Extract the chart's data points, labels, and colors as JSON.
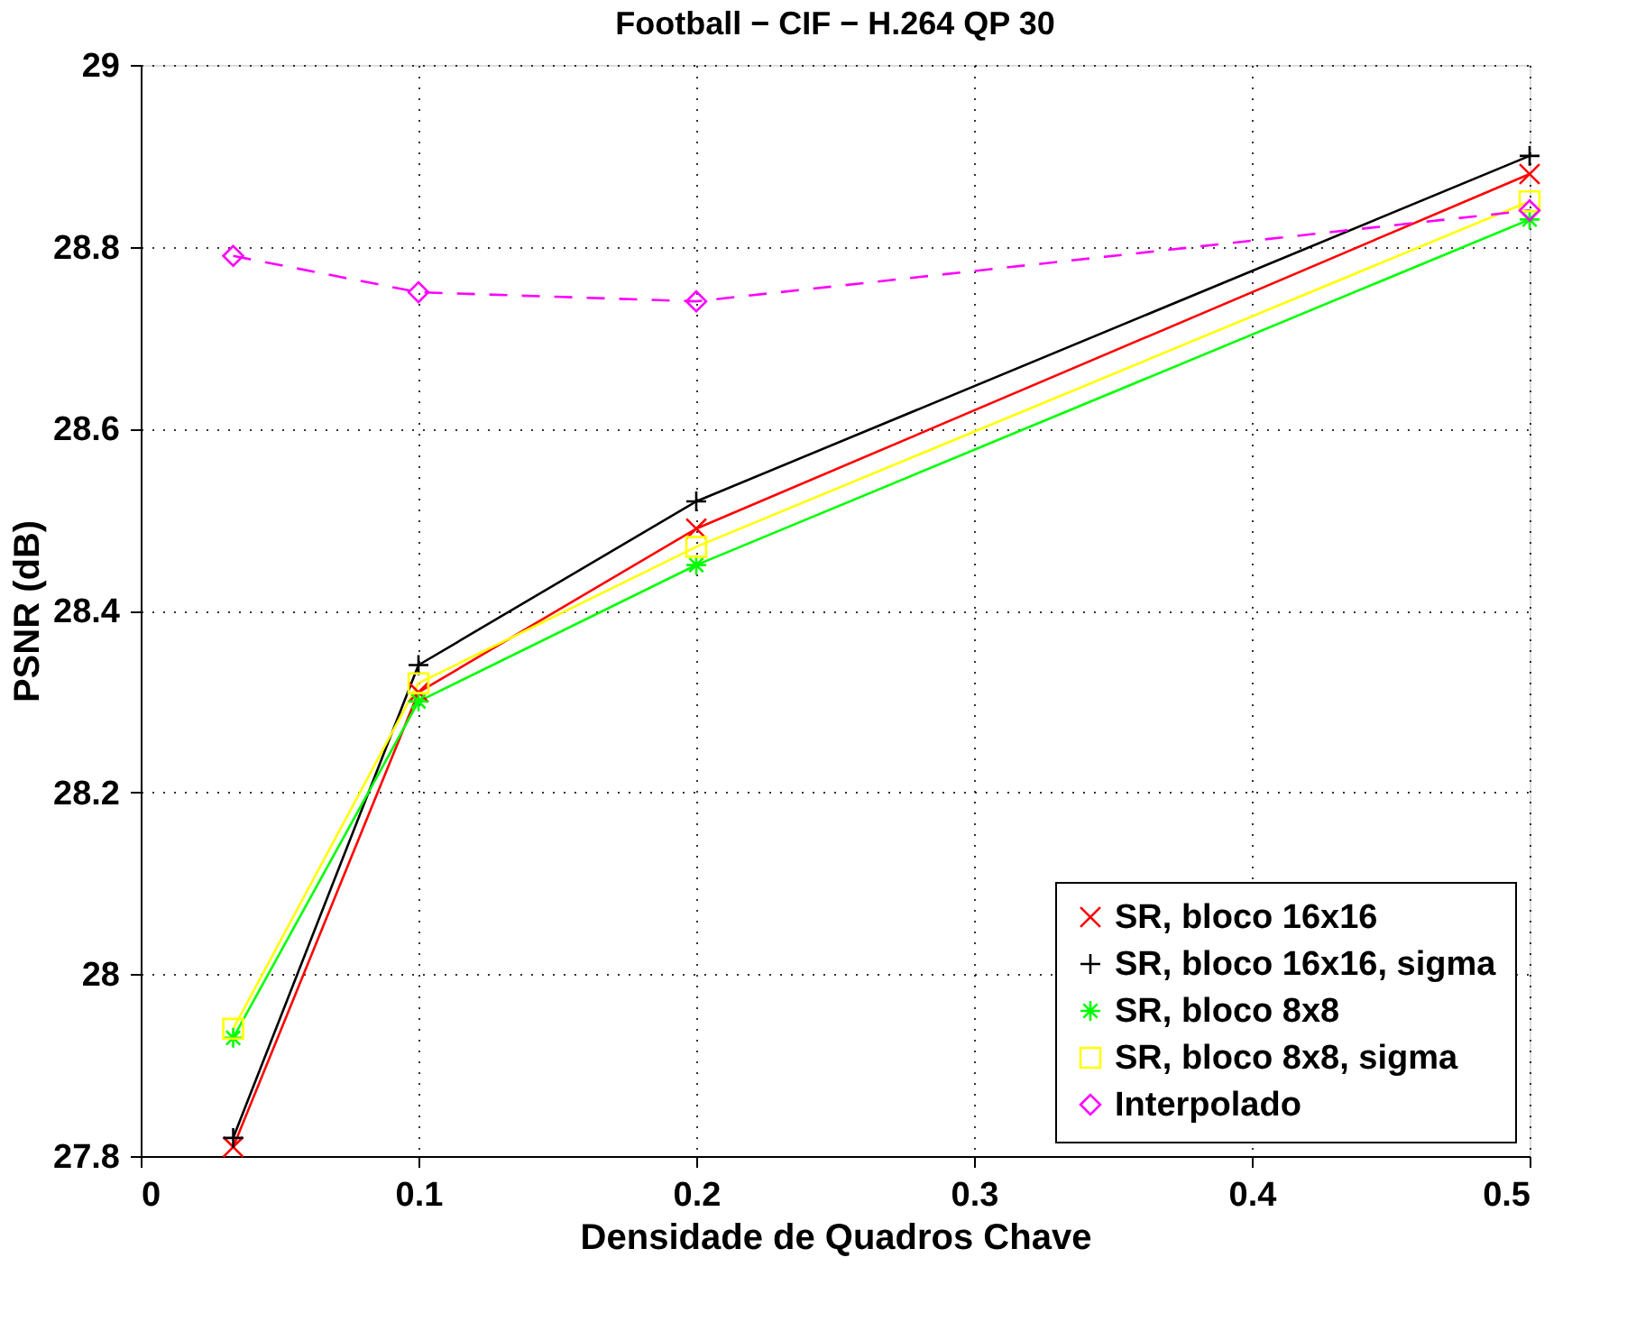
{
  "chart_data": {
    "type": "line",
    "title": "Football − CIF − H.264 QP 30",
    "xlabel": "Densidade de Quadros Chave",
    "ylabel": "PSNR (dB)",
    "x": [
      0.0333,
      0.1,
      0.2,
      0.5
    ],
    "xlim": [
      0,
      0.5
    ],
    "xticks": [
      0,
      0.1,
      0.2,
      0.3,
      0.4,
      0.5
    ],
    "ylim": [
      27.8,
      29
    ],
    "yticks": [
      27.8,
      28,
      28.2,
      28.4,
      28.6,
      28.8,
      29
    ],
    "grid": true,
    "legend": "bottom right",
    "series": [
      {
        "name": "SR, bloco 16x16",
        "color": "#ff0000",
        "marker": "x",
        "line_style": "solid",
        "values": [
          27.81,
          28.31,
          28.49,
          28.88
        ]
      },
      {
        "name": "SR, bloco 16x16, sigma",
        "color": "#000000",
        "marker": "plus",
        "line_style": "solid",
        "values": [
          27.82,
          28.34,
          28.52,
          28.9
        ]
      },
      {
        "name": "SR, bloco 8x8",
        "color": "#00ff00",
        "marker": "cross",
        "line_style": "solid",
        "values": [
          27.93,
          28.3,
          28.45,
          28.83
        ]
      },
      {
        "name": "SR, bloco 8x8, sigma",
        "color": "#ffff00",
        "marker": "square",
        "line_style": "solid",
        "values": [
          27.94,
          28.32,
          28.47,
          28.85
        ]
      },
      {
        "name": "Interpolado",
        "color": "#ff00ff",
        "marker": "diamond",
        "line_style": "dashed",
        "values": [
          28.79,
          28.75,
          28.74,
          28.84
        ]
      }
    ]
  }
}
